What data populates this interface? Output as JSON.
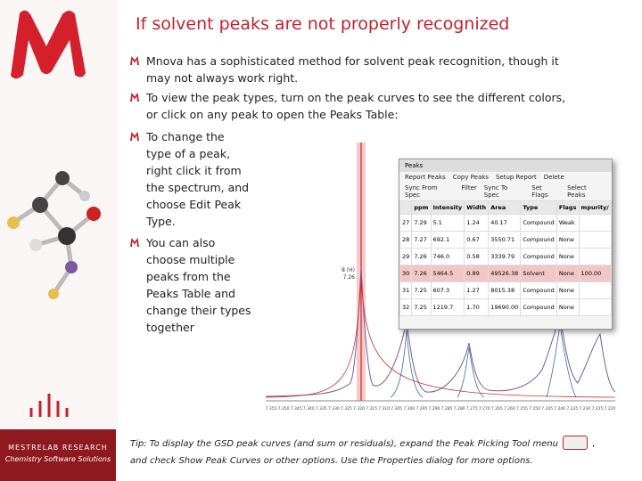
{
  "title": "If solvent peaks are not properly recognized",
  "bullets": [
    "Mnova has a sophisticated method for solvent peak recognition, though it may not always work right.",
    "To view the peak types, turn on the peak curves to see the different colors, or click on any peak to open the Peaks Table:",
    "To change the type of a peak, right click it from the spectrum, and choose Edit Peak Type.",
    "You can also choose multiple peaks from the Peaks Table and change their types together"
  ],
  "peaks_window": {
    "title": "Peaks",
    "toolbar_row1": [
      "Report Peaks",
      "Copy Peaks",
      "Setup Report",
      "Delete"
    ],
    "toolbar_row2": [
      "Sync From Spec",
      "Filter",
      "Sync To Spec",
      "Set Flags",
      "Select Peaks"
    ],
    "table": {
      "header": [
        "ppm",
        "Intensity",
        "Width",
        "Area",
        "Type",
        "Flags",
        "mpurity/"
      ],
      "rows": [
        [
          "27",
          "7.29",
          "5.1",
          "1.24",
          "40.17",
          "Compound",
          "Weak",
          ""
        ],
        [
          "28",
          "7.27",
          "692.1",
          "0.67",
          "3550.71",
          "Compound",
          "None",
          ""
        ],
        [
          "29",
          "7.26",
          "746.0",
          "0.58",
          "3339.79",
          "Compound",
          "None",
          ""
        ],
        [
          "30",
          "7.26",
          "5464.5",
          "0.89",
          "49526.38",
          "Solvent",
          "None",
          "100.00"
        ],
        [
          "31",
          "7.25",
          "607.3",
          "1.27",
          "8015.38",
          "Compound",
          "None",
          ""
        ],
        [
          "32",
          "7.25",
          "1219.7",
          "1.70",
          "19690.00",
          "Compound",
          "None",
          ""
        ]
      ]
    }
  },
  "peak_label": [
    "8 (H)",
    "7.26"
  ],
  "axis_labels": [
    "7.355",
    "7.350",
    "7.345",
    "7.340",
    "7.335",
    "7.330",
    "7.325",
    "7.320",
    "7.315",
    "7.310",
    "7.305",
    "7.300",
    "7.295",
    "7.290",
    "7.285",
    "7.280",
    "7.275",
    "7.270",
    "7.265",
    "7.260",
    "7.255",
    "7.250",
    "7.245",
    "7.240",
    "7.235",
    "7.230",
    "7.225",
    "7.220"
  ],
  "tip": [
    "Tip: To display the GSD peak curves (and sum or residuals), expand the Peak Picking Tool menu",
    ",",
    "and check Show Peak Curves or other options. Use the Properties dialog for more options."
  ],
  "brand": [
    "MESTRELAB RESEARCH",
    "Chemistry Software Solutions"
  ]
}
